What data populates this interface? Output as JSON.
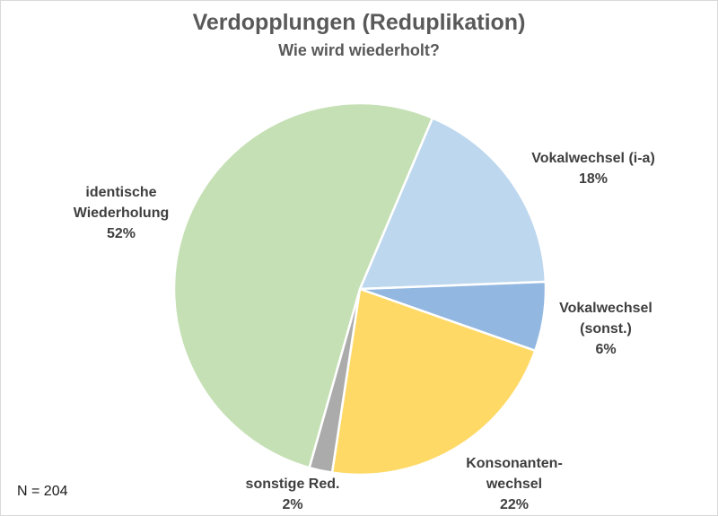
{
  "chart_data": {
    "type": "pie",
    "title": "Verdopplungen (Reduplikation)",
    "subtitle": "Wie wird wiederholt?",
    "sample_note": "N = 204",
    "legend": "none",
    "labels_position": "outside",
    "rotation_direction": "clockwise",
    "start_angle_deg": 23,
    "separator_color": "#ffffff",
    "slices": [
      {
        "label": "Vokalwechsel (i-a)",
        "value_pct": 18,
        "color": "#bdd7ee"
      },
      {
        "label": "Vokalwechsel (sonst.)",
        "value_pct": 6,
        "color": "#92b7e0"
      },
      {
        "label": "Konsonantenwechsel",
        "value_pct": 22,
        "color": "#ffd966"
      },
      {
        "label": "sonstige Red.",
        "value_pct": 2,
        "color": "#ababab"
      },
      {
        "label": "identische Wiederholung",
        "value_pct": 52,
        "color": "#c5e0b4"
      }
    ]
  },
  "callouts": {
    "identisch": {
      "line1": "identische",
      "line2": "Wiederholung",
      "line3": "52%"
    },
    "vokal_ia": {
      "line1": "Vokalwechsel (i-a)",
      "line2": "18%"
    },
    "vokal_sonst": {
      "line1": "Vokalwechsel",
      "line2": "(sonst.)",
      "line3": "6%"
    },
    "konsonanten": {
      "line1": "Konsonanten-",
      "line2": "wechsel",
      "line3": "22%"
    },
    "sonstige": {
      "line1": "sonstige Red.",
      "line2": "2%"
    }
  },
  "colors": {
    "title_text": "#595959",
    "label_text": "#3f3f3f",
    "frame_border": "#d9d9d9",
    "background": "#ffffff"
  }
}
